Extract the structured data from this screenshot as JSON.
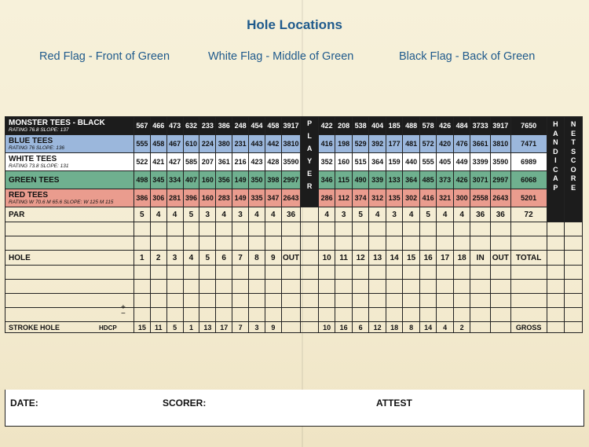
{
  "title": "Hole Locations",
  "flags": {
    "red": "Red Flag - Front of Green",
    "white": "White Flag - Middle of Green",
    "black": "Black Flag - Back of Green"
  },
  "tees": [
    {
      "name": "MONSTER TEES - BLACK",
      "sub": "RATING 76.8  SLOPE: 137",
      "front": [
        "567",
        "466",
        "473",
        "632",
        "233",
        "386",
        "248",
        "454",
        "458",
        "3917"
      ],
      "back": [
        "422",
        "208",
        "538",
        "404",
        "185",
        "488",
        "578",
        "426",
        "484",
        "3733",
        "3917"
      ],
      "total": "7650"
    },
    {
      "name": "BLUE TEES",
      "sub": "RATING 76  SLOPE: 136",
      "front": [
        "555",
        "458",
        "467",
        "610",
        "224",
        "380",
        "231",
        "443",
        "442",
        "3810"
      ],
      "back": [
        "416",
        "198",
        "529",
        "392",
        "177",
        "481",
        "572",
        "420",
        "476",
        "3661",
        "3810"
      ],
      "total": "7471"
    },
    {
      "name": "WHITE TEES",
      "sub": "RATING 73.8  SLOPE: 131",
      "front": [
        "522",
        "421",
        "427",
        "585",
        "207",
        "361",
        "216",
        "423",
        "428",
        "3590"
      ],
      "back": [
        "352",
        "160",
        "515",
        "364",
        "159",
        "440",
        "555",
        "405",
        "449",
        "3399",
        "3590"
      ],
      "total": "6989"
    },
    {
      "name": "GREEN TEES",
      "sub": "",
      "front": [
        "498",
        "345",
        "334",
        "407",
        "160",
        "356",
        "149",
        "350",
        "398",
        "2997"
      ],
      "back": [
        "346",
        "115",
        "490",
        "339",
        "133",
        "364",
        "485",
        "373",
        "426",
        "3071",
        "2997"
      ],
      "total": "6068"
    },
    {
      "name": "RED TEES",
      "sub": "RATING W 70.6  M 65.6   SLOPE: W 125   M 115",
      "front": [
        "386",
        "306",
        "281",
        "396",
        "160",
        "283",
        "149",
        "335",
        "347",
        "2643"
      ],
      "back": [
        "286",
        "112",
        "374",
        "312",
        "135",
        "302",
        "416",
        "321",
        "300",
        "2558",
        "2643"
      ],
      "total": "5201"
    }
  ],
  "par": {
    "label": "PAR",
    "front": [
      "5",
      "4",
      "4",
      "5",
      "3",
      "4",
      "3",
      "4",
      "4",
      "36"
    ],
    "back": [
      "4",
      "3",
      "5",
      "4",
      "3",
      "4",
      "5",
      "4",
      "4",
      "36",
      "36"
    ],
    "total": "72"
  },
  "hole": {
    "label": "HOLE",
    "front": [
      "1",
      "2",
      "3",
      "4",
      "5",
      "6",
      "7",
      "8",
      "9",
      "OUT"
    ],
    "back": [
      "10",
      "11",
      "12",
      "13",
      "14",
      "15",
      "16",
      "17",
      "18",
      "IN",
      "OUT"
    ],
    "total": "TOTAL"
  },
  "stroke": {
    "label": "STROKE HOLE",
    "hdcp": "HDCP",
    "front": [
      "15",
      "11",
      "5",
      "1",
      "13",
      "17",
      "7",
      "3",
      "9",
      ""
    ],
    "back": [
      "10",
      "16",
      "6",
      "12",
      "18",
      "8",
      "14",
      "4",
      "2",
      "",
      ""
    ],
    "total": "GROSS"
  },
  "player_letters": [
    "P",
    "L",
    "A",
    "Y",
    "E",
    "R"
  ],
  "handicap_letters": [
    "H",
    "A",
    "N",
    "D",
    "I",
    "C",
    "A",
    "P"
  ],
  "netscore_letters": [
    "N",
    "E",
    "T",
    "S",
    "C",
    "O",
    "R",
    "E"
  ],
  "plus_minus": "+\n−",
  "footer": {
    "date": "DATE:",
    "scorer": "SCORER:",
    "attest": "ATTEST"
  }
}
